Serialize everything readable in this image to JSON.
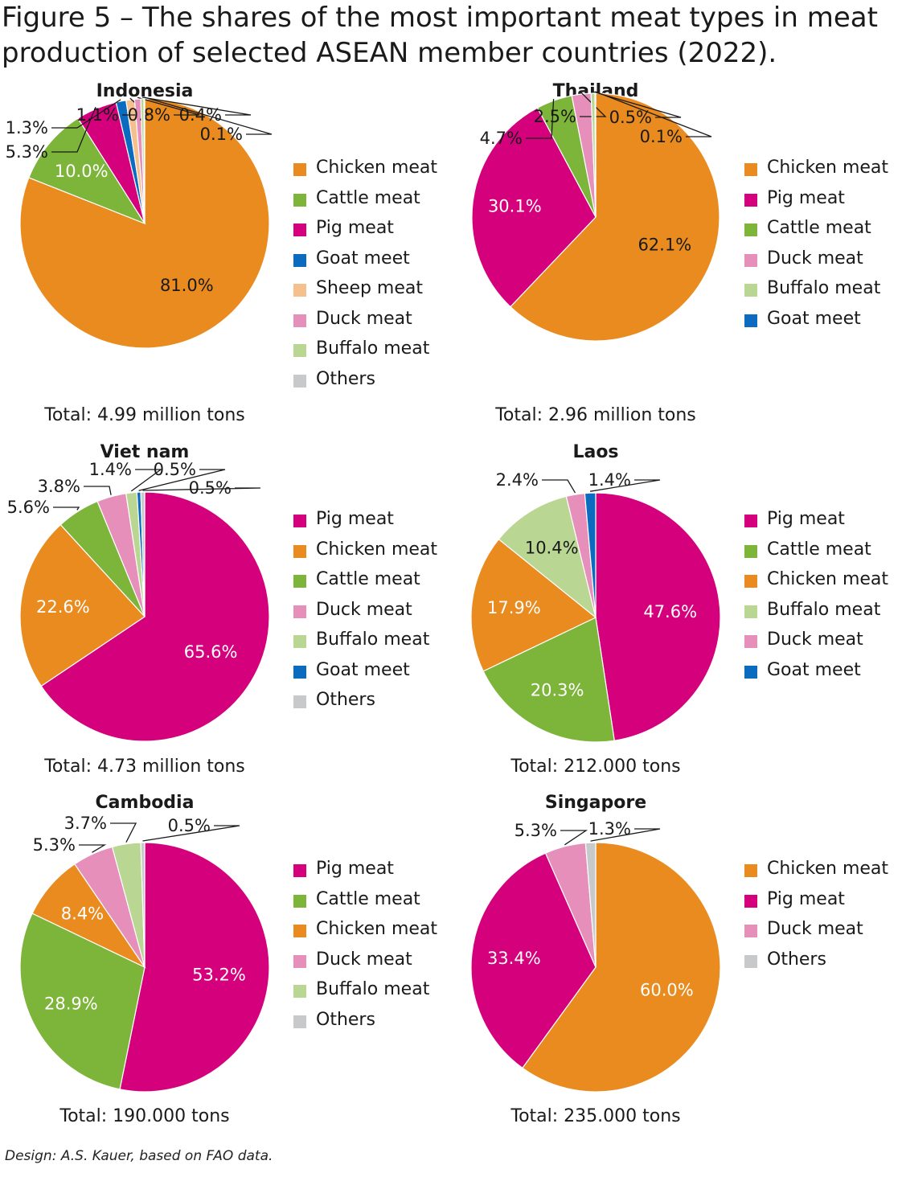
{
  "figure_title": "Figure 5 – The shares of the most important meat types in meat production of selected ASEAN member countries (2022).",
  "footnote": "Design: A.S. Kauer, based on FAO data.",
  "colors": {
    "Chicken meat": "#e98b1f",
    "Pig meat": "#d4007c",
    "Cattle meat": "#7db53a",
    "Goat meet": "#0a6bbf",
    "Sheep meat": "#f6c08e",
    "Duck meat": "#e68fba",
    "Buffalo meat": "#b9d692",
    "Others": "#c8c9cb"
  },
  "chart_data": [
    {
      "type": "pie",
      "title": "Indonesia",
      "total": "Total: 4.99 million tons",
      "legend": [
        "Chicken meat",
        "Cattle meat",
        "Pig meat",
        "Goat meet",
        "Sheep meat",
        "Duck meat",
        "Buffalo meat",
        "Others"
      ],
      "slices": [
        {
          "category": "Chicken meat",
          "value": 81.0,
          "label": "81.0%"
        },
        {
          "category": "Cattle meat",
          "value": 10.0,
          "label": "10.0%"
        },
        {
          "category": "Pig meat",
          "value": 5.3,
          "label": "5.3%"
        },
        {
          "category": "Goat meet",
          "value": 1.3,
          "label": "1.3%"
        },
        {
          "category": "Sheep meat",
          "value": 1.1,
          "label": "1.1%"
        },
        {
          "category": "Duck meat",
          "value": 0.8,
          "label": "0.8%"
        },
        {
          "category": "Buffalo meat",
          "value": 0.4,
          "label": "0.4%"
        },
        {
          "category": "Others",
          "value": 0.1,
          "label": "0.1%"
        }
      ]
    },
    {
      "type": "pie",
      "title": "Thailand",
      "total": "Total: 2.96 million tons",
      "legend": [
        "Chicken meat",
        "Pig meat",
        "Cattle meat",
        "Duck meat",
        "Buffalo meat",
        "Goat meet"
      ],
      "slices": [
        {
          "category": "Chicken meat",
          "value": 62.1,
          "label": "62.1%"
        },
        {
          "category": "Pig meat",
          "value": 30.1,
          "label": "30.1%"
        },
        {
          "category": "Cattle meat",
          "value": 4.7,
          "label": "4.7%"
        },
        {
          "category": "Duck meat",
          "value": 2.5,
          "label": "2.5%"
        },
        {
          "category": "Buffalo meat",
          "value": 0.5,
          "label": "0.5%"
        },
        {
          "category": "Goat meet",
          "value": 0.1,
          "label": "0.1%"
        }
      ]
    },
    {
      "type": "pie",
      "title": "Viet nam",
      "total": "Total: 4.73 million tons",
      "legend": [
        "Pig meat",
        "Chicken meat",
        "Cattle meat",
        "Duck meat",
        "Buffalo meat",
        "Goat meet",
        "Others"
      ],
      "slices": [
        {
          "category": "Pig meat",
          "value": 65.6,
          "label": "65.6%"
        },
        {
          "category": "Chicken meat",
          "value": 22.6,
          "label": "22.6%"
        },
        {
          "category": "Cattle meat",
          "value": 5.6,
          "label": "5.6%"
        },
        {
          "category": "Duck meat",
          "value": 3.8,
          "label": "3.8%"
        },
        {
          "category": "Buffalo meat",
          "value": 1.4,
          "label": "1.4%"
        },
        {
          "category": "Goat meet",
          "value": 0.5,
          "label": "0.5%"
        },
        {
          "category": "Others",
          "value": 0.5,
          "label": "0.5%"
        }
      ]
    },
    {
      "type": "pie",
      "title": "Laos",
      "total": "Total: 212.000 tons",
      "legend": [
        "Pig meat",
        "Cattle meat",
        "Chicken meat",
        "Buffalo meat",
        "Duck meat",
        "Goat meet"
      ],
      "slices": [
        {
          "category": "Pig meat",
          "value": 47.6,
          "label": "47.6%"
        },
        {
          "category": "Cattle meat",
          "value": 20.3,
          "label": "20.3%"
        },
        {
          "category": "Chicken meat",
          "value": 17.9,
          "label": "17.9%"
        },
        {
          "category": "Buffalo meat",
          "value": 10.4,
          "label": "10.4%"
        },
        {
          "category": "Duck meat",
          "value": 2.4,
          "label": "2.4%"
        },
        {
          "category": "Goat meet",
          "value": 1.4,
          "label": "1.4%"
        }
      ]
    },
    {
      "type": "pie",
      "title": "Cambodia",
      "total": "Total: 190.000 tons",
      "legend": [
        "Pig meat",
        "Cattle meat",
        "Chicken meat",
        "Duck meat",
        "Buffalo meat",
        "Others"
      ],
      "slices": [
        {
          "category": "Pig meat",
          "value": 53.2,
          "label": "53.2%"
        },
        {
          "category": "Cattle meat",
          "value": 28.9,
          "label": "28.9%"
        },
        {
          "category": "Chicken meat",
          "value": 8.4,
          "label": "8.4%"
        },
        {
          "category": "Duck meat",
          "value": 5.3,
          "label": "5.3%"
        },
        {
          "category": "Buffalo meat",
          "value": 3.7,
          "label": "3.7%"
        },
        {
          "category": "Others",
          "value": 0.5,
          "label": "0.5%"
        }
      ]
    },
    {
      "type": "pie",
      "title": "Singapore",
      "total": "Total: 235.000 tons",
      "legend": [
        "Chicken meat",
        "Pig meat",
        "Duck meat",
        "Others"
      ],
      "slices": [
        {
          "category": "Chicken meat",
          "value": 60.0,
          "label": "60.0%"
        },
        {
          "category": "Pig meat",
          "value": 33.4,
          "label": "33.4%"
        },
        {
          "category": "Duck meat",
          "value": 5.3,
          "label": "5.3%"
        },
        {
          "category": "Others",
          "value": 1.3,
          "label": "1.3%"
        }
      ]
    }
  ]
}
